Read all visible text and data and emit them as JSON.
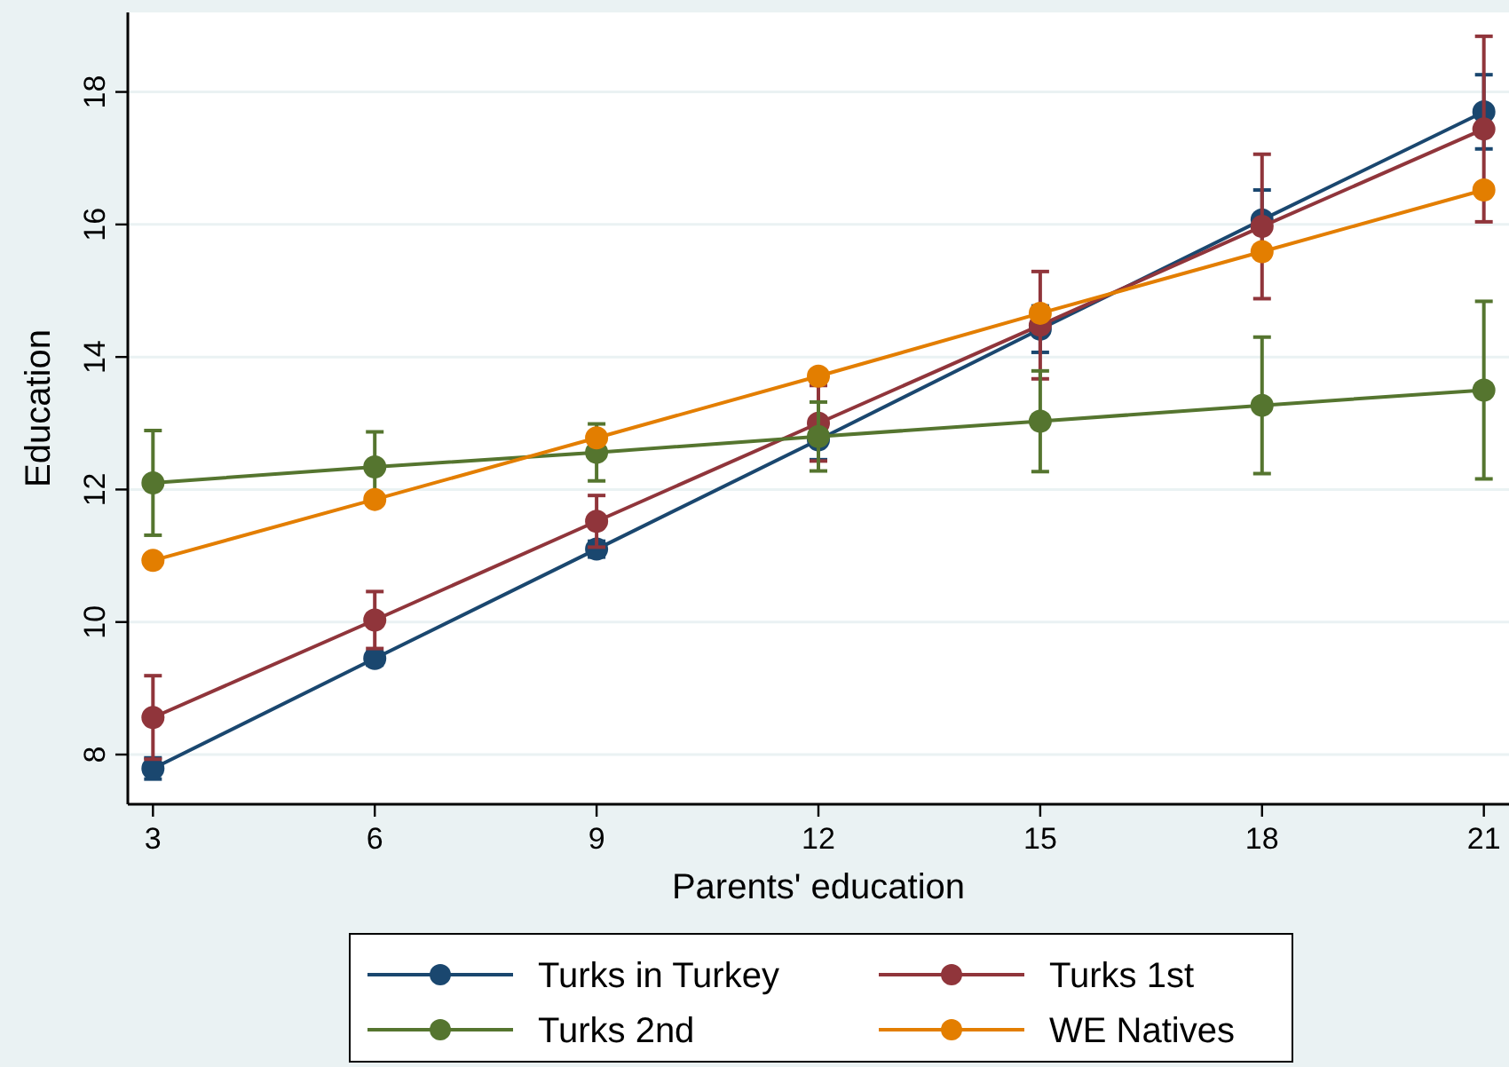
{
  "chart_data": {
    "type": "line",
    "xlabel": "Parents' education",
    "ylabel": "Education",
    "x": [
      3,
      6,
      9,
      12,
      15,
      18,
      21
    ],
    "xlim": [
      2.66,
      21.34
    ],
    "xticks": [
      3,
      6,
      9,
      12,
      15,
      18,
      21
    ],
    "ylim": [
      7.25,
      19.2
    ],
    "yticks": [
      8,
      10,
      12,
      14,
      16,
      18
    ],
    "grid": "y",
    "legend": "bottom",
    "marker": "circle",
    "line_style": "solid",
    "series": [
      {
        "name": "Turks in Turkey",
        "color": "#1a476f",
        "values": [
          7.79,
          9.45,
          11.1,
          12.75,
          14.42,
          16.07,
          17.7
        ],
        "errors": [
          0.16,
          0.1,
          0.12,
          0.3,
          0.35,
          0.45,
          0.56
        ]
      },
      {
        "name": "Turks 1st",
        "color": "#90353b",
        "values": [
          8.56,
          10.03,
          11.52,
          13.0,
          14.48,
          15.97,
          17.44
        ],
        "errors": [
          0.63,
          0.43,
          0.39,
          0.57,
          0.81,
          1.09,
          1.4
        ]
      },
      {
        "name": "Turks 2nd",
        "color": "#55752f",
        "values": [
          12.1,
          12.34,
          12.56,
          12.8,
          13.03,
          13.27,
          13.5
        ],
        "errors": [
          0.79,
          0.53,
          0.43,
          0.52,
          0.76,
          1.03,
          1.34
        ]
      },
      {
        "name": "WE Natives",
        "color": "#e37e00",
        "values": [
          10.93,
          11.85,
          12.78,
          13.71,
          14.66,
          15.59,
          16.52
        ],
        "errors": [
          0.06,
          null,
          null,
          null,
          null,
          null,
          null
        ]
      }
    ]
  }
}
